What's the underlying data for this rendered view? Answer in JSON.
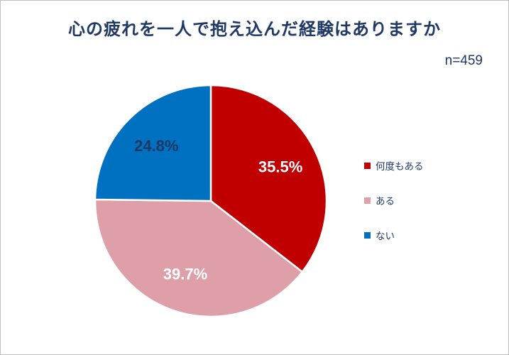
{
  "title": "心の疲れを一人で抱え込んだ経験はありますか",
  "sample_size_label": "n=459",
  "colors": {
    "title_text": "#1F3864",
    "panel_border": "#BFBFBF",
    "background": "#FFFFFF",
    "slice_border": "#FFFFFF"
  },
  "chart_data": {
    "type": "pie",
    "title": "心の疲れを一人で抱え込んだ経験はありますか",
    "sample_size": "n=459",
    "start_angle_deg": 0,
    "direction": "clockwise",
    "legend_position": "right",
    "slices": [
      {
        "label": "何度もある",
        "value": 35.5,
        "display": "35.5%",
        "color": "#C00000",
        "label_color": "#FFFFFF"
      },
      {
        "label": "ある",
        "value": 39.7,
        "display": "39.7%",
        "color": "#DE9FA8",
        "label_color": "#FFFFFF"
      },
      {
        "label": "ない",
        "value": 24.8,
        "display": "24.8%",
        "color": "#0070C0",
        "label_color": "#1F3864"
      }
    ]
  }
}
